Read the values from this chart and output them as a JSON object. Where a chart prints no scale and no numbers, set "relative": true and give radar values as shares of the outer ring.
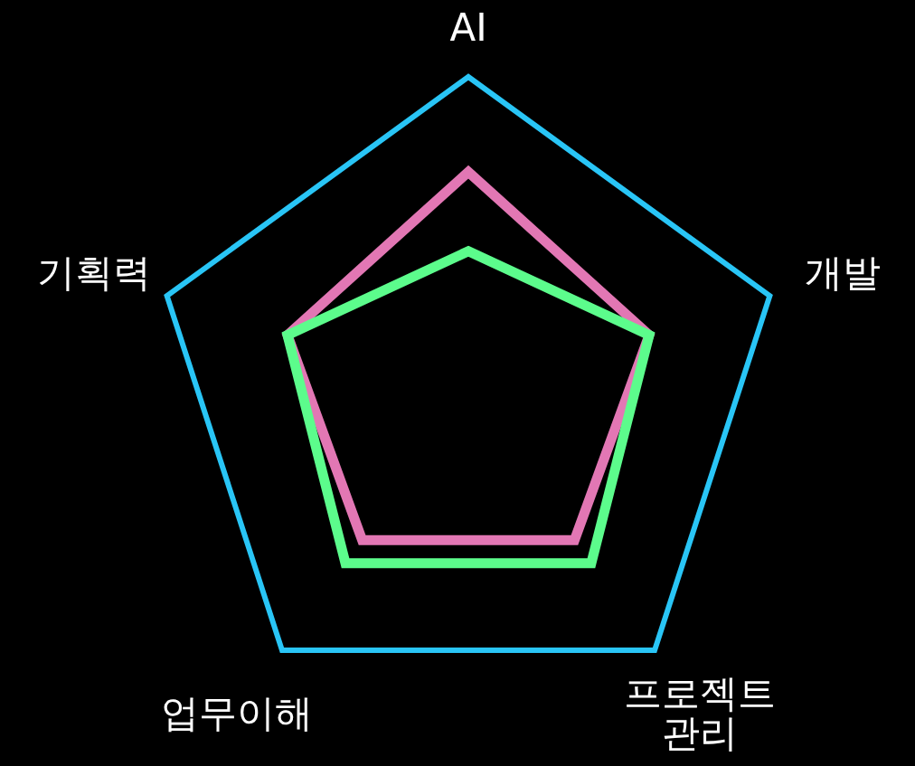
{
  "chart_data": {
    "type": "radar",
    "relative": true,
    "grid": true,
    "categories": [
      "AI",
      "개발",
      "프로젝트 관리",
      "업무이해",
      "기획력"
    ],
    "series": [
      {
        "color": "#e277b4",
        "values": [
          0.7,
          0.6,
          0.57,
          0.57,
          0.6
        ]
      },
      {
        "color": "#5cfc8c",
        "values": [
          0.45,
          0.6,
          0.66,
          0.66,
          0.6
        ]
      }
    ]
  }
}
